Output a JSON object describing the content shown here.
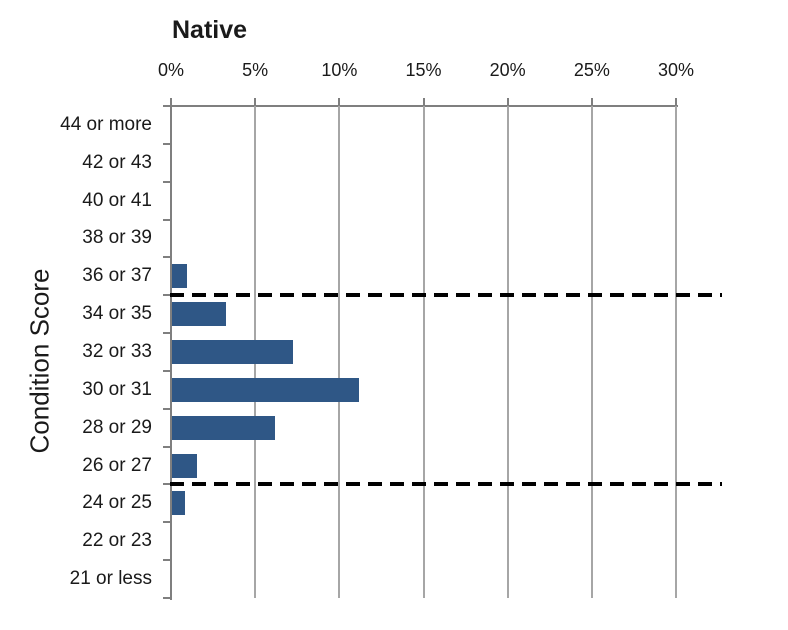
{
  "chart_data": {
    "type": "bar",
    "orientation": "horizontal",
    "title": "Native",
    "xlabel": "",
    "ylabel": "Condition Score",
    "categories": [
      "44 or more",
      "42 or 43",
      "40 or 41",
      "38 or 39",
      "36 or 37",
      "34 or 35",
      "32 or 33",
      "30 or 31",
      "28 or 29",
      "26 or 27",
      "24 or 25",
      "22 or 23",
      "21 or less"
    ],
    "values": [
      0,
      0,
      0,
      0,
      0.9,
      3.2,
      7.2,
      11.1,
      6.1,
      1.5,
      0.8,
      0,
      0
    ],
    "x_tick_labels": [
      "0%",
      "5%",
      "10%",
      "15%",
      "20%",
      "25%",
      "30%"
    ],
    "xlim": [
      0,
      30
    ],
    "grid": true,
    "legend": false,
    "reference_lines": [
      {
        "after_category": "36 or 37",
        "style": "dashed",
        "color": "#000000"
      },
      {
        "after_category": "26 or 27",
        "style": "dashed",
        "color": "#000000"
      }
    ],
    "colors": {
      "bar": "#2f5786",
      "gridline": "#a6a6a6",
      "axis": "#7f7f7f",
      "reference_line": "#000000",
      "text": "#1a1a1a"
    }
  }
}
